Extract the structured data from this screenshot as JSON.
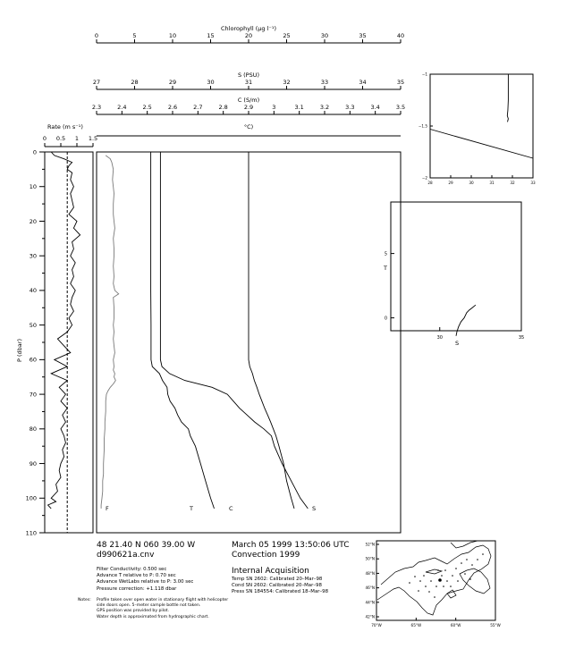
{
  "chart_data": [
    {
      "type": "line",
      "name": "profile",
      "top_axes": [
        {
          "key": "chl",
          "label": "Chlorophyll (μg l⁻¹)",
          "min": 0,
          "max": 40,
          "ticks": [
            0,
            5,
            10,
            15,
            20,
            25,
            30,
            35,
            40
          ],
          "tick_labels": [
            "0",
            "5",
            "10",
            "15",
            "20",
            "25",
            "30",
            "35",
            "40"
          ]
        },
        {
          "key": "s",
          "label": "S (PSU)",
          "min": 27,
          "max": 35,
          "ticks": [
            27,
            28,
            29,
            30,
            31,
            32,
            33,
            34,
            35
          ],
          "tick_labels": [
            "27",
            "28",
            "29",
            "30",
            "31",
            "32",
            "33",
            "34",
            "35"
          ]
        },
        {
          "key": "c",
          "label": "C (S/m)",
          "min": 2.3,
          "max": 3.5,
          "ticks": [
            2.3,
            2.4,
            2.5,
            2.6,
            2.7,
            2.8,
            2.9,
            3.0,
            3.1,
            3.2,
            3.3,
            3.4,
            3.5
          ],
          "tick_labels": [
            "2.3",
            "2.4",
            "2.5",
            "2.6",
            "2.7",
            "2.8",
            "2.9",
            "3",
            "3.1",
            "3.2",
            "3.3",
            "3.4",
            "3.5"
          ]
        },
        {
          "key": "t",
          "label": "°C)",
          "min": 0,
          "max": 10,
          "ticks": [],
          "tick_labels": []
        }
      ],
      "ylabel": "P (dbar)",
      "ylim": [
        0,
        110
      ],
      "yticks": [
        0,
        10,
        20,
        30,
        40,
        50,
        60,
        70,
        80,
        90,
        100,
        110
      ],
      "ytick_labels": [
        "0",
        "10",
        "20",
        "30",
        "40",
        "50",
        "60",
        "70",
        "80",
        "90",
        "100",
        "110"
      ],
      "series": [
        {
          "name": "F",
          "axis": "chl",
          "color": "#7a7a7a",
          "p": [
            1,
            2,
            3,
            5,
            8,
            12,
            15,
            18,
            20,
            22,
            25,
            28,
            30,
            33,
            36,
            38,
            40,
            41,
            42,
            45,
            48,
            50,
            52,
            54,
            56,
            58,
            60,
            62,
            63,
            64,
            65,
            66,
            67,
            68,
            69,
            70,
            72,
            75,
            78,
            80,
            83,
            86,
            90,
            93,
            95,
            98,
            100,
            102,
            103
          ],
          "v": [
            1.2,
            1.8,
            2.0,
            2.2,
            2.1,
            2.3,
            2.2,
            2.2,
            2.3,
            2.4,
            2.2,
            2.3,
            2.3,
            2.2,
            2.3,
            2.2,
            2.4,
            2.9,
            2.2,
            2.3,
            2.3,
            2.2,
            2.3,
            2.2,
            2.3,
            2.4,
            2.2,
            2.3,
            2.2,
            2.4,
            2.3,
            2.5,
            2.2,
            1.8,
            1.5,
            1.3,
            1.2,
            1.2,
            1.1,
            1.1,
            1.0,
            1.0,
            0.9,
            0.9,
            0.8,
            0.8,
            0.7,
            0.6,
            0.6
          ]
        },
        {
          "name": "T",
          "axis": "t",
          "color": "#000000",
          "p": [
            0,
            10,
            20,
            30,
            40,
            50,
            60,
            62,
            64,
            66,
            68,
            70,
            72,
            74,
            76,
            78,
            80,
            82,
            85,
            90,
            95,
            100,
            103
          ],
          "v": [
            2.1,
            2.1,
            2.1,
            2.1,
            2.1,
            2.1,
            2.1,
            2.15,
            2.4,
            2.9,
            3.8,
            4.3,
            4.5,
            4.7,
            4.95,
            5.2,
            5.5,
            5.75,
            5.85,
            6.1,
            6.4,
            6.7,
            6.95
          ]
        },
        {
          "name": "C",
          "axis": "c",
          "color": "#000000",
          "p": [
            0,
            10,
            20,
            30,
            40,
            50,
            60,
            62,
            64,
            66,
            68,
            70,
            72,
            74,
            76,
            78,
            80,
            82,
            85,
            90,
            95,
            100,
            103
          ],
          "v": [
            2.514,
            2.514,
            2.514,
            2.514,
            2.514,
            2.515,
            2.515,
            2.52,
            2.548,
            2.56,
            2.578,
            2.581,
            2.59,
            2.609,
            2.62,
            2.635,
            2.662,
            2.67,
            2.69,
            2.71,
            2.73,
            2.75,
            2.764
          ]
        },
        {
          "name": "S",
          "axis": "s",
          "color": "#000000",
          "p": [
            0,
            10,
            20,
            30,
            40,
            50,
            60,
            62,
            64,
            66,
            68,
            70,
            72,
            74,
            76,
            78,
            80,
            82,
            85,
            90,
            95,
            100,
            103
          ],
          "v": [
            31.0,
            31.0,
            31.0,
            31.0,
            31.0,
            31.0,
            31.0,
            31.03,
            31.1,
            31.15,
            31.22,
            31.28,
            31.35,
            31.42,
            31.5,
            31.58,
            31.65,
            31.72,
            31.8,
            31.92,
            32.0,
            32.12,
            32.2
          ]
        }
      ]
    },
    {
      "type": "line",
      "name": "rate",
      "title": "Rate (m s⁻¹)",
      "xlim": [
        0,
        1.5
      ],
      "xticks": [
        0,
        0.5,
        1,
        1.5
      ],
      "xtick_labels": [
        "0",
        "0.5",
        "1",
        "1.5"
      ],
      "ylim": [
        0,
        110
      ],
      "mean_line": 0.7,
      "series": [
        {
          "name": "Rate",
          "p": [
            0,
            1,
            2,
            3,
            4,
            5,
            6,
            8,
            10,
            12,
            14,
            16,
            18,
            20,
            22,
            24,
            26,
            28,
            30,
            32,
            34,
            36,
            38,
            40,
            42,
            44,
            46,
            48,
            50,
            52,
            54,
            56,
            58,
            60,
            62,
            64,
            66,
            68,
            70,
            72,
            74,
            76,
            78,
            80,
            82,
            84,
            86,
            88,
            90,
            92,
            94,
            96,
            98,
            100,
            101,
            102,
            103
          ],
          "v": [
            0.2,
            0.3,
            0.6,
            0.85,
            0.75,
            0.7,
            0.85,
            0.8,
            0.9,
            0.8,
            0.85,
            0.9,
            0.75,
            1.0,
            0.9,
            1.1,
            0.85,
            0.9,
            0.8,
            0.95,
            0.85,
            0.9,
            0.8,
            0.95,
            0.85,
            0.8,
            0.9,
            0.75,
            0.85,
            0.7,
            0.4,
            0.6,
            0.8,
            0.3,
            0.7,
            0.2,
            0.7,
            0.45,
            0.65,
            0.5,
            0.7,
            0.55,
            0.65,
            0.5,
            0.6,
            0.65,
            0.55,
            0.6,
            0.5,
            0.45,
            0.5,
            0.35,
            0.4,
            0.2,
            0.35,
            0.1,
            0.2
          ]
        }
      ]
    },
    {
      "type": "line",
      "name": "temperature-inset",
      "xticks": [
        28,
        29,
        30,
        31,
        32,
        33
      ],
      "xtick_labels": [
        "28",
        "29",
        "30",
        "31",
        "32",
        "33"
      ],
      "yticks": [
        -1,
        -1.5,
        -2
      ],
      "ytick_labels": [
        "−1",
        "−1.5",
        "−2"
      ],
      "xlim": [
        28,
        33
      ],
      "ylim": [
        -2,
        -1
      ],
      "series": [
        {
          "name": "freezing-line",
          "x": [
            28,
            33
          ],
          "y": [
            -1.53,
            -1.81
          ]
        },
        {
          "name": "profile",
          "x": [
            31.8,
            31.8,
            31.78,
            31.75,
            31.8,
            31.76
          ],
          "y": [
            -1.0,
            -1.25,
            -1.35,
            -1.4,
            -1.43,
            -1.46
          ]
        }
      ]
    },
    {
      "type": "scatter",
      "name": "ts-diagram",
      "xlabel": "S",
      "ylabel": "T",
      "xlim": [
        27,
        35
      ],
      "ylim": [
        -1,
        9
      ],
      "xticks": [
        30,
        35
      ],
      "xtick_labels": [
        "30",
        "35"
      ],
      "yticks": [
        0,
        5
      ],
      "ytick_labels": [
        "0",
        "5"
      ],
      "series": [
        {
          "name": "T-S",
          "x": [
            31.0,
            31.05,
            31.15,
            31.3,
            31.5,
            31.65,
            31.8,
            32.0,
            32.2
          ],
          "y": [
            -1.4,
            -1.1,
            -0.7,
            -0.3,
            0.0,
            0.4,
            0.6,
            0.8,
            1.0
          ]
        }
      ]
    }
  ],
  "plot_labels": {
    "F": "F",
    "T": "T",
    "C": "C",
    "S": "S"
  },
  "map": {
    "lat_labels": [
      "52°N",
      "50°N",
      "48°N",
      "46°N",
      "44°N",
      "42°N"
    ],
    "lon_labels": [
      "70°W",
      "65°W",
      "60°W",
      "55°W"
    ]
  },
  "station": {
    "position": "48 21.40 N  060 39.00 W",
    "file": "d990621a.cnv",
    "datetime": "March 05 1999 13:50:06 UTC",
    "cruise": "Convection 1999"
  },
  "settings": [
    "Filter Conductivity: 0.500 sec",
    "Advance T relative to P: 0.70 sec",
    "Advance WetLabs relative to P: 3.00 sec",
    "Pressure correction: +1.118 dbar"
  ],
  "acquisition": {
    "title": "Internal Acquisition",
    "lines": [
      "Temp SN 2602: Calibrated 20–Mar–98",
      "Cond SN 2602: Calibrated 20–Mar–98",
      "Press SN 184554: Calibrated 18–Mar–98"
    ]
  },
  "notes": {
    "label": "Notes:",
    "lines": [
      "Profile taken over open water in stationary flight with helicopter",
      "side doors open.  5–meter sample bottle not taken.",
      "GPS position was provided by pilot.",
      "Water depth is approximated from hydrographic chart."
    ]
  }
}
